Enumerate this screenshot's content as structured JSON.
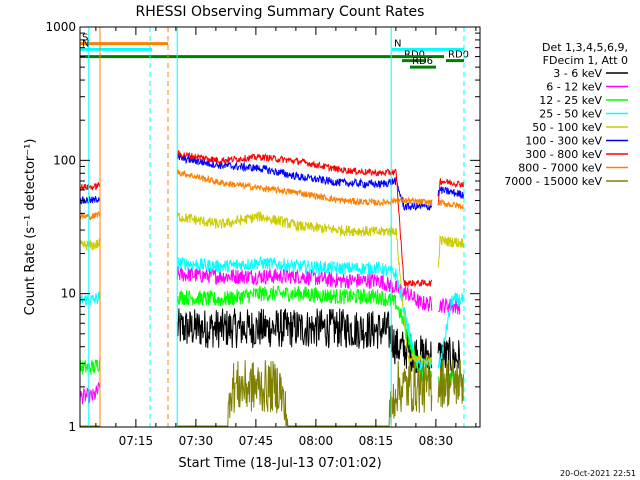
{
  "chart_data": {
    "type": "line",
    "title": "RHESSI Observing Summary Count Rates",
    "xlabel": "Start Time (18-Jul-13 07:01:02)",
    "ylabel": "Count Rate (s⁻¹ detector⁻¹)",
    "y_scale": "log",
    "ylim": [
      1,
      1000
    ],
    "xlim_minutes": [
      0,
      100
    ],
    "y_ticks": [
      1,
      10,
      100,
      1000
    ],
    "y_tick_labels": [
      "1",
      "10",
      "100",
      "1000"
    ],
    "x_ticks_minutes": [
      13.97,
      28.97,
      43.97,
      58.97,
      73.97,
      88.97
    ],
    "x_tick_labels": [
      "07:15",
      "07:30",
      "07:45",
      "08:00",
      "08:15",
      "08:30"
    ],
    "legend_header": [
      "Det 1,3,4,5,6,9,",
      "FDecim 1, Att 0"
    ],
    "legend_position": "right",
    "footer": "20-Oct-2021 22:51",
    "flags": [
      {
        "label": "S",
        "color": "#ff8000",
        "y": 750,
        "start": 0,
        "end": 22
      },
      {
        "label": "N",
        "color": "#00ffff",
        "y": 680,
        "start": 0,
        "end": 18
      },
      {
        "label": "N",
        "color": "#00ffff",
        "y": 680,
        "start": 78,
        "end": 96
      },
      {
        "label": "RD0",
        "color": "#008000",
        "y": 560,
        "start": 80.5,
        "end": 86.5
      },
      {
        "label": "RD0",
        "color": "#008000",
        "y": 560,
        "start": 91.5,
        "end": 96
      },
      {
        "label": "",
        "color": "#008000",
        "y": 600,
        "start": 0,
        "end": 91
      },
      {
        "label": "RD6",
        "color": "#008000",
        "y": 500,
        "start": 82.5,
        "end": 89
      }
    ],
    "event_lines": [
      {
        "x": 2.2,
        "color": "#00ffff",
        "style": "solid"
      },
      {
        "x": 5.0,
        "color": "#ff8000",
        "style": "solid"
      },
      {
        "x": 17.5,
        "color": "#00ffff",
        "style": "dashed"
      },
      {
        "x": 22.0,
        "color": "#ff8000",
        "style": "dashed"
      },
      {
        "x": 24.3,
        "color": "#00ffff",
        "style": "solid"
      },
      {
        "x": 77.8,
        "color": "#00ffff",
        "style": "solid"
      },
      {
        "x": 96.0,
        "color": "#00ffff",
        "style": "dashed"
      }
    ],
    "gaps": [
      [
        5.0,
        24.3
      ],
      [
        88.0,
        89.5
      ]
    ],
    "series": [
      {
        "name": "3 - 6 keV",
        "color": "#000000",
        "noise": 0.15,
        "points": [
          [
            0,
            1
          ],
          [
            23.6,
            1
          ],
          [
            24.3,
            5.5
          ],
          [
            35,
            5.5
          ],
          [
            50,
            5.5
          ],
          [
            65,
            5.5
          ],
          [
            77,
            5.3
          ],
          [
            79,
            4
          ],
          [
            85,
            3.5
          ],
          [
            95,
            3.3
          ]
        ]
      },
      {
        "name": "6 - 12 keV",
        "color": "#ff00ff",
        "noise": 0.06,
        "points": [
          [
            0,
            1.7
          ],
          [
            3.5,
            1.7
          ],
          [
            24.3,
            14
          ],
          [
            35,
            13.5
          ],
          [
            45,
            13.5
          ],
          [
            55,
            13.5
          ],
          [
            65,
            12.5
          ],
          [
            75,
            12.5
          ],
          [
            79,
            11
          ],
          [
            82,
            10
          ],
          [
            85,
            8.5
          ],
          [
            95,
            8
          ]
        ]
      },
      {
        "name": "12 - 25 keV",
        "color": "#00ff00",
        "noise": 0.06,
        "points": [
          [
            0,
            2.8
          ],
          [
            3.5,
            2.8
          ],
          [
            24.3,
            9.5
          ],
          [
            35,
            9
          ],
          [
            45,
            10
          ],
          [
            55,
            10
          ],
          [
            65,
            9.5
          ],
          [
            75,
            9.5
          ],
          [
            79,
            8.5
          ],
          [
            81,
            6
          ],
          [
            85,
            2.5
          ],
          [
            95,
            2.2
          ]
        ]
      },
      {
        "name": "25 - 50 keV",
        "color": "#00ffff",
        "noise": 0.05,
        "points": [
          [
            0,
            9
          ],
          [
            3.5,
            9
          ],
          [
            24.3,
            17
          ],
          [
            35,
            16
          ],
          [
            45,
            17
          ],
          [
            55,
            16
          ],
          [
            65,
            15.5
          ],
          [
            75,
            15.5
          ],
          [
            79,
            14
          ],
          [
            84,
            3
          ],
          [
            90,
            3
          ],
          [
            93,
            9
          ],
          [
            96,
            9
          ]
        ]
      },
      {
        "name": "50 - 100 keV",
        "color": "#cccc00",
        "noise": 0.04,
        "points": [
          [
            0,
            23
          ],
          [
            3.5,
            23
          ],
          [
            24.3,
            38
          ],
          [
            35,
            33
          ],
          [
            45,
            38
          ],
          [
            55,
            32
          ],
          [
            65,
            30
          ],
          [
            75,
            29
          ],
          [
            79,
            30
          ],
          [
            82,
            3.2
          ],
          [
            88,
            3.2
          ],
          [
            90,
            25
          ],
          [
            96,
            24
          ]
        ]
      },
      {
        "name": "100 - 300 keV",
        "color": "#0000ff",
        "noise": 0.03,
        "points": [
          [
            0,
            50
          ],
          [
            3.5,
            50
          ],
          [
            24.3,
            105
          ],
          [
            35,
            92
          ],
          [
            45,
            87
          ],
          [
            55,
            75
          ],
          [
            65,
            68
          ],
          [
            75,
            66
          ],
          [
            79,
            70
          ],
          [
            81,
            45
          ],
          [
            88,
            45
          ],
          [
            90,
            60
          ],
          [
            96,
            55
          ]
        ]
      },
      {
        "name": "300 - 800 keV",
        "color": "#ff0000",
        "noise": 0.025,
        "points": [
          [
            0,
            63
          ],
          [
            3.5,
            63
          ],
          [
            24.3,
            112
          ],
          [
            35,
            100
          ],
          [
            45,
            106
          ],
          [
            55,
            98
          ],
          [
            65,
            85
          ],
          [
            75,
            80
          ],
          [
            79,
            82
          ],
          [
            81,
            12
          ],
          [
            88,
            12
          ],
          [
            90,
            70
          ],
          [
            96,
            66
          ]
        ]
      },
      {
        "name": "800 - 7000 keV",
        "color": "#ff8000",
        "noise": 0.025,
        "points": [
          [
            0,
            38
          ],
          [
            3.5,
            38
          ],
          [
            24.3,
            82
          ],
          [
            35,
            68
          ],
          [
            45,
            62
          ],
          [
            55,
            57
          ],
          [
            65,
            50
          ],
          [
            75,
            48
          ],
          [
            79,
            50
          ],
          [
            81,
            50
          ],
          [
            88,
            48
          ],
          [
            90,
            48
          ],
          [
            96,
            45
          ]
        ]
      },
      {
        "name": "7000 - 15000 keV",
        "color": "#808000",
        "noise": 0.2,
        "points": [
          [
            0,
            1
          ],
          [
            24.3,
            1
          ],
          [
            37,
            1
          ],
          [
            37.5,
            2
          ],
          [
            50,
            2
          ],
          [
            52,
            1
          ],
          [
            77,
            1
          ],
          [
            79,
            2
          ],
          [
            88,
            2
          ],
          [
            90,
            2.2
          ],
          [
            96,
            2.2
          ]
        ]
      }
    ]
  }
}
